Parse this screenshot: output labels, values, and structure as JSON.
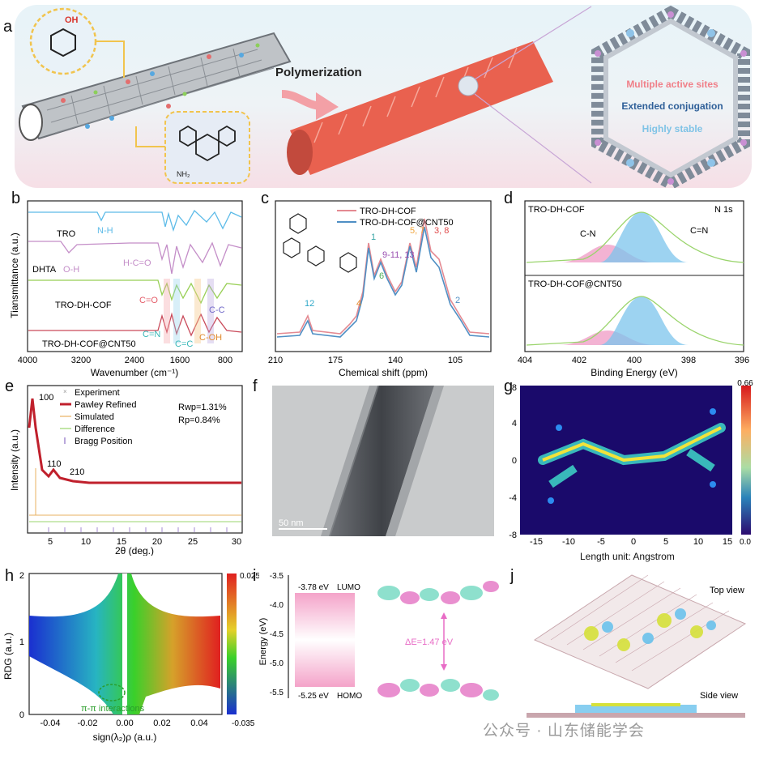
{
  "panel_labels": {
    "a": "a",
    "b": "b",
    "c": "c",
    "d": "d",
    "e": "e",
    "f": "f",
    "g": "g",
    "h": "h",
    "i": "i",
    "j": "j"
  },
  "scheme": {
    "polymerization": "Polymerization",
    "features": [
      "Multiple active sites",
      "Extended conjugation",
      "Highly stable"
    ],
    "feature_colors": [
      "#f07f88",
      "#2e5f98",
      "#7fc3e6"
    ],
    "oh_label": "OH",
    "nh2_label": "NH₂"
  },
  "panel_b": {
    "xlabel": "Wavenumber (cm⁻¹)",
    "ylabel": "Tiansmittance (a.u.)",
    "ticks": [
      "4000",
      "3200",
      "2400",
      "1600",
      "800"
    ],
    "series": [
      {
        "name": "TRO",
        "color": "#5dbbe8"
      },
      {
        "name": "DHTA",
        "color": "#c48ec8"
      },
      {
        "name": "TRO-DH-COF",
        "color": "#98cf55"
      },
      {
        "name": "TRO-DH-COF@CNT50",
        "color": "#c94a5a"
      }
    ],
    "annotations": [
      "N-H",
      "O-H",
      "H-C=O",
      "C=O",
      "C=N",
      "C=C",
      "C-OH",
      "C-C"
    ]
  },
  "panel_c": {
    "xlabel": "Chemical shift (ppm)",
    "ticks": [
      "210",
      "175",
      "140",
      "105"
    ],
    "legend": [
      "TRO-DH-COF",
      "TRO-DH-COF@CNT50"
    ],
    "colors": [
      "#e48a92",
      "#4f8fc4"
    ],
    "peak_labels": [
      "12",
      "4",
      "1",
      "6",
      "9-11, 13",
      "5, 7",
      "3, 8",
      "2"
    ]
  },
  "panel_d": {
    "xlabel": "Binding Energy (eV)",
    "ticks": [
      "404",
      "402",
      "400",
      "398",
      "396"
    ],
    "top_title": "TRO-DH-COF",
    "corner": "N 1s",
    "bottom_title": "TRO-DH-COF@CNT50",
    "labels": [
      "C-N",
      "C=N"
    ]
  },
  "panel_e": {
    "xlabel": "2θ (deg.)",
    "ylabel": "Intensity (a.u.)",
    "ticks": [
      "5",
      "10",
      "15",
      "20",
      "25",
      "30"
    ],
    "legend": [
      "Experiment",
      "Pawley Refined",
      "Simulated",
      "Difference",
      "Bragg Position"
    ],
    "stats": [
      "Rwp=1.31%",
      "Rp=0.84%"
    ],
    "peaks": [
      "100",
      "110",
      "210"
    ]
  },
  "panel_f": {
    "scale": "50 nm"
  },
  "panel_g": {
    "xlabel": "Length unit: Angstrom",
    "xticks": [
      "-15",
      "-10",
      "-5",
      "0",
      "5",
      "10",
      "15"
    ],
    "yticks": [
      "8",
      "4",
      "0",
      "-4",
      "-8"
    ],
    "cmax": "0.66",
    "cmin": "0.0"
  },
  "panel_h": {
    "xlabel": "sign(λ₂)ρ (a.u.)",
    "ylabel": "RDG (a.u.)",
    "xticks": [
      "-0.04",
      "-0.02",
      "0.00",
      "0.02",
      "0.04"
    ],
    "yticks": [
      "2",
      "1",
      "0"
    ],
    "cmax": "0.025",
    "cmin": "-0.035",
    "annotation": "π-π interactions"
  },
  "panel_i": {
    "ylabel": "Energy (eV)",
    "yticks": [
      "-3.5",
      "-4.0",
      "-4.5",
      "-5.0",
      "-5.5"
    ],
    "lumo_value": "-3.78 eV",
    "lumo": "LUMO",
    "homo_value": "-5.25 eV",
    "homo": "HOMO",
    "gap": "ΔE=1.47 eV"
  },
  "panel_j": {
    "top": "Top view",
    "side": "Side view"
  },
  "watermark": "公众号 · 山东储能学会"
}
